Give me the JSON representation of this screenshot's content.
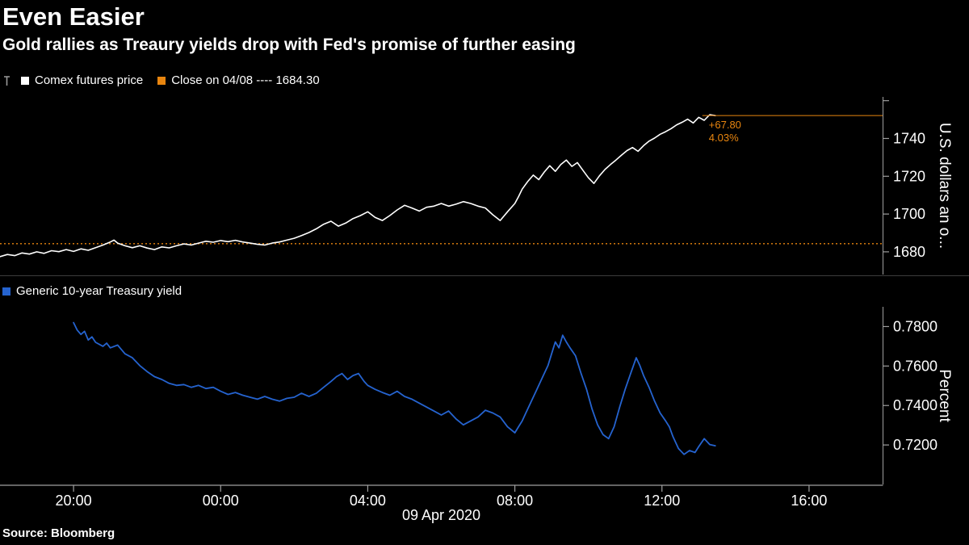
{
  "page": {
    "title": "Even Easier",
    "subtitle": "Gold rallies as Treaury yields drop with Fed's promise of further easing",
    "source": "Source: Bloomberg"
  },
  "colors": {
    "background": "#000000",
    "text": "#ffffff",
    "gold_line": "#ffffff",
    "close_orange": "#e8850f",
    "yield_blue": "#2563cf",
    "axis": "#9f9f9f",
    "divider": "#3c3c3c"
  },
  "xaxis": {
    "t_range": [
      0,
      24
    ],
    "ticks": [
      {
        "t": 2,
        "label": "20:00"
      },
      {
        "t": 6,
        "label": "00:00"
      },
      {
        "t": 10,
        "label": "04:00"
      },
      {
        "t": 14,
        "label": "08:00"
      },
      {
        "t": 18,
        "label": "12:00"
      },
      {
        "t": 22,
        "label": "16:00"
      }
    ],
    "date_label": "09 Apr 2020"
  },
  "chart_data": [
    {
      "type": "line",
      "name": "gold",
      "title": "Comex futures price",
      "legend": [
        {
          "label": "Comex futures price",
          "color": "#ffffff"
        },
        {
          "label": "Close on 04/08 ---- 1684.30",
          "color": "#e8850f"
        }
      ],
      "ylabel": "U.S. dollars an o...",
      "ylim": [
        1668,
        1762
      ],
      "yticks": [
        {
          "v": 1680,
          "label": "1680"
        },
        {
          "v": 1700,
          "label": "1700"
        },
        {
          "v": 1720,
          "label": "1720"
        },
        {
          "v": 1740,
          "label": "1740"
        },
        {
          "v": 1760,
          "label": ""
        }
      ],
      "close_value": 1684.3,
      "last_value": 1752.1,
      "annotation": {
        "line1": "+67.80",
        "line2": "4.03%"
      },
      "points": [
        [
          0,
          1677.5
        ],
        [
          0.2,
          1678.6
        ],
        [
          0.4,
          1678.0
        ],
        [
          0.6,
          1679.4
        ],
        [
          0.8,
          1678.8
        ],
        [
          1,
          1680.0
        ],
        [
          1.2,
          1679.2
        ],
        [
          1.4,
          1680.6
        ],
        [
          1.6,
          1680.1
        ],
        [
          1.8,
          1681.2
        ],
        [
          2,
          1680.2
        ],
        [
          2.2,
          1681.6
        ],
        [
          2.4,
          1680.8
        ],
        [
          2.6,
          1682.2
        ],
        [
          2.8,
          1683.6
        ],
        [
          3,
          1685.2
        ],
        [
          3.1,
          1686.2
        ],
        [
          3.2,
          1684.6
        ],
        [
          3.4,
          1683.2
        ],
        [
          3.6,
          1682.2
        ],
        [
          3.8,
          1683.2
        ],
        [
          4,
          1682.0
        ],
        [
          4.2,
          1681.2
        ],
        [
          4.4,
          1682.6
        ],
        [
          4.6,
          1682.1
        ],
        [
          4.8,
          1683.2
        ],
        [
          5,
          1684.2
        ],
        [
          5.2,
          1683.6
        ],
        [
          5.4,
          1684.6
        ],
        [
          5.6,
          1685.6
        ],
        [
          5.8,
          1685.1
        ],
        [
          6,
          1686.0
        ],
        [
          6.2,
          1685.4
        ],
        [
          6.4,
          1686.1
        ],
        [
          6.6,
          1685.2
        ],
        [
          6.8,
          1684.6
        ],
        [
          7,
          1684.0
        ],
        [
          7.2,
          1683.6
        ],
        [
          7.4,
          1684.6
        ],
        [
          7.6,
          1685.2
        ],
        [
          7.8,
          1686.2
        ],
        [
          8,
          1687.2
        ],
        [
          8.2,
          1688.6
        ],
        [
          8.4,
          1690.2
        ],
        [
          8.6,
          1692.2
        ],
        [
          8.8,
          1694.6
        ],
        [
          9,
          1696.2
        ],
        [
          9.2,
          1693.6
        ],
        [
          9.4,
          1695.2
        ],
        [
          9.6,
          1697.6
        ],
        [
          9.8,
          1699.2
        ],
        [
          10,
          1701.2
        ],
        [
          10.2,
          1698.2
        ],
        [
          10.4,
          1696.6
        ],
        [
          10.6,
          1699.2
        ],
        [
          10.8,
          1702.2
        ],
        [
          11,
          1704.6
        ],
        [
          11.2,
          1703.2
        ],
        [
          11.4,
          1701.6
        ],
        [
          11.6,
          1703.6
        ],
        [
          11.8,
          1704.2
        ],
        [
          12,
          1705.6
        ],
        [
          12.2,
          1704.2
        ],
        [
          12.4,
          1705.2
        ],
        [
          12.6,
          1706.6
        ],
        [
          12.8,
          1705.6
        ],
        [
          13,
          1704.2
        ],
        [
          13.2,
          1703.2
        ],
        [
          13.4,
          1699.6
        ],
        [
          13.6,
          1696.6
        ],
        [
          13.8,
          1701.2
        ],
        [
          14,
          1705.6
        ],
        [
          14.1,
          1709.2
        ],
        [
          14.2,
          1713.2
        ],
        [
          14.35,
          1717.2
        ],
        [
          14.5,
          1720.6
        ],
        [
          14.65,
          1718.2
        ],
        [
          14.8,
          1722.2
        ],
        [
          14.95,
          1725.6
        ],
        [
          15.1,
          1722.6
        ],
        [
          15.25,
          1726.2
        ],
        [
          15.4,
          1728.6
        ],
        [
          15.55,
          1725.2
        ],
        [
          15.7,
          1727.2
        ],
        [
          15.85,
          1723.2
        ],
        [
          16,
          1719.2
        ],
        [
          16.15,
          1716.2
        ],
        [
          16.3,
          1720.2
        ],
        [
          16.45,
          1723.6
        ],
        [
          16.6,
          1726.2
        ],
        [
          16.75,
          1728.6
        ],
        [
          16.9,
          1731.2
        ],
        [
          17.05,
          1733.6
        ],
        [
          17.2,
          1735.2
        ],
        [
          17.35,
          1733.2
        ],
        [
          17.5,
          1736.2
        ],
        [
          17.65,
          1738.6
        ],
        [
          17.8,
          1740.2
        ],
        [
          17.95,
          1742.2
        ],
        [
          18.1,
          1743.6
        ],
        [
          18.25,
          1745.2
        ],
        [
          18.4,
          1747.2
        ],
        [
          18.55,
          1748.6
        ],
        [
          18.7,
          1750.2
        ],
        [
          18.85,
          1748.2
        ],
        [
          19,
          1751.2
        ],
        [
          19.15,
          1749.6
        ],
        [
          19.3,
          1752.6
        ],
        [
          19.45,
          1752.1
        ]
      ]
    },
    {
      "type": "line",
      "name": "yield",
      "title": "Generic 10-year Treasury yield",
      "legend": [
        {
          "label": "Generic 10-year Treasury yield",
          "color": "#2563cf"
        }
      ],
      "ylabel": "Percent",
      "ylim": [
        0.7,
        0.79
      ],
      "yticks": [
        {
          "v": 0.72,
          "label": "0.7200"
        },
        {
          "v": 0.74,
          "label": "0.7400"
        },
        {
          "v": 0.76,
          "label": "0.7600"
        },
        {
          "v": 0.78,
          "label": "0.7800"
        }
      ],
      "points": [
        [
          2,
          0.782
        ],
        [
          2.1,
          0.7782
        ],
        [
          2.2,
          0.776
        ],
        [
          2.3,
          0.7776
        ],
        [
          2.4,
          0.7732
        ],
        [
          2.5,
          0.7748
        ],
        [
          2.6,
          0.772
        ],
        [
          2.8,
          0.77
        ],
        [
          2.9,
          0.7716
        ],
        [
          3,
          0.7692
        ],
        [
          3.2,
          0.7706
        ],
        [
          3.4,
          0.7662
        ],
        [
          3.6,
          0.7642
        ],
        [
          3.8,
          0.7602
        ],
        [
          4,
          0.7572
        ],
        [
          4.2,
          0.7546
        ],
        [
          4.4,
          0.7532
        ],
        [
          4.6,
          0.7512
        ],
        [
          4.8,
          0.7502
        ],
        [
          5,
          0.7506
        ],
        [
          5.2,
          0.7492
        ],
        [
          5.4,
          0.7502
        ],
        [
          5.6,
          0.7486
        ],
        [
          5.8,
          0.7492
        ],
        [
          6,
          0.7472
        ],
        [
          6.2,
          0.7456
        ],
        [
          6.4,
          0.7466
        ],
        [
          6.6,
          0.7452
        ],
        [
          6.8,
          0.7442
        ],
        [
          7,
          0.7432
        ],
        [
          7.2,
          0.7446
        ],
        [
          7.4,
          0.7432
        ],
        [
          7.6,
          0.7422
        ],
        [
          7.8,
          0.7436
        ],
        [
          8,
          0.7442
        ],
        [
          8.2,
          0.7462
        ],
        [
          8.4,
          0.7446
        ],
        [
          8.6,
          0.7462
        ],
        [
          8.8,
          0.7492
        ],
        [
          9,
          0.7522
        ],
        [
          9.15,
          0.7546
        ],
        [
          9.3,
          0.7562
        ],
        [
          9.45,
          0.7532
        ],
        [
          9.6,
          0.7552
        ],
        [
          9.75,
          0.7562
        ],
        [
          9.9,
          0.7522
        ],
        [
          10,
          0.7502
        ],
        [
          10.2,
          0.7482
        ],
        [
          10.4,
          0.7466
        ],
        [
          10.6,
          0.7452
        ],
        [
          10.8,
          0.7472
        ],
        [
          11,
          0.7446
        ],
        [
          11.2,
          0.7432
        ],
        [
          11.4,
          0.7412
        ],
        [
          11.6,
          0.7392
        ],
        [
          11.8,
          0.7372
        ],
        [
          12,
          0.7352
        ],
        [
          12.2,
          0.7372
        ],
        [
          12.4,
          0.7332
        ],
        [
          12.6,
          0.7302
        ],
        [
          12.8,
          0.7322
        ],
        [
          13,
          0.7342
        ],
        [
          13.2,
          0.7376
        ],
        [
          13.4,
          0.7362
        ],
        [
          13.6,
          0.7342
        ],
        [
          13.8,
          0.7292
        ],
        [
          14,
          0.7262
        ],
        [
          14.1,
          0.7292
        ],
        [
          14.2,
          0.7322
        ],
        [
          14.3,
          0.7362
        ],
        [
          14.45,
          0.7422
        ],
        [
          14.6,
          0.7482
        ],
        [
          14.75,
          0.7542
        ],
        [
          14.9,
          0.7602
        ],
        [
          15,
          0.7662
        ],
        [
          15.1,
          0.7722
        ],
        [
          15.2,
          0.7692
        ],
        [
          15.3,
          0.7756
        ],
        [
          15.4,
          0.7722
        ],
        [
          15.5,
          0.7692
        ],
        [
          15.65,
          0.7652
        ],
        [
          15.8,
          0.7562
        ],
        [
          15.95,
          0.7482
        ],
        [
          16.1,
          0.7382
        ],
        [
          16.25,
          0.7302
        ],
        [
          16.4,
          0.7252
        ],
        [
          16.55,
          0.7232
        ],
        [
          16.7,
          0.7292
        ],
        [
          16.85,
          0.7392
        ],
        [
          17,
          0.7482
        ],
        [
          17.15,
          0.7562
        ],
        [
          17.3,
          0.7642
        ],
        [
          17.4,
          0.7602
        ],
        [
          17.5,
          0.7552
        ],
        [
          17.65,
          0.7492
        ],
        [
          17.8,
          0.7422
        ],
        [
          17.95,
          0.7362
        ],
        [
          18.1,
          0.7322
        ],
        [
          18.2,
          0.7292
        ],
        [
          18.3,
          0.7242
        ],
        [
          18.45,
          0.7182
        ],
        [
          18.6,
          0.7152
        ],
        [
          18.75,
          0.7172
        ],
        [
          18.9,
          0.7162
        ],
        [
          19,
          0.7192
        ],
        [
          19.15,
          0.7232
        ],
        [
          19.3,
          0.7202
        ],
        [
          19.45,
          0.7196
        ]
      ]
    }
  ]
}
